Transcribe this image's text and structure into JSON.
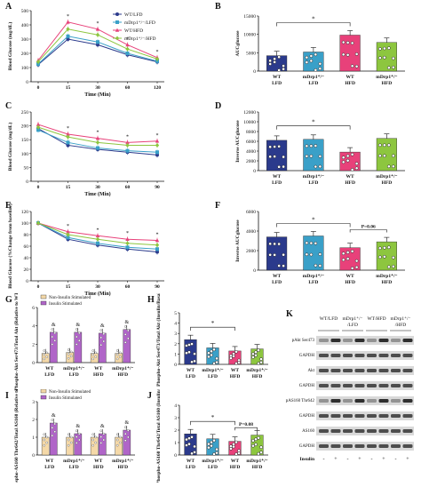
{
  "colors": {
    "wt_lfd": "#2b3a8c",
    "mdrp1_lfd": "#3aa0c8",
    "wt_hfd": "#e8417a",
    "mdrp1_hfd": "#8dc63f",
    "non_insulin": "#f5d9a8",
    "insulin": "#b065c8"
  },
  "chart_data": [
    {
      "panel": "A",
      "type": "line",
      "ylabel": "Blood Glucose (mg/dL)",
      "xlabel": "Time (Min)",
      "x": [
        0,
        15,
        30,
        60,
        120
      ],
      "xticks": [
        "0",
        "15",
        "30",
        "60",
        "120"
      ],
      "ylim": [
        0,
        500
      ],
      "yticks": [
        "0",
        "100",
        "200",
        "300",
        "400",
        "500"
      ],
      "series": [
        {
          "name": "WT/LFD",
          "values": [
            120,
            300,
            260,
            190,
            140
          ]
        },
        {
          "name": "mDrp1+/-/LFD",
          "values": [
            125,
            320,
            280,
            200,
            145
          ]
        },
        {
          "name": "WT/HFD",
          "values": [
            150,
            420,
            370,
            260,
            170
          ]
        },
        {
          "name": "mDrp1+/-/HFD",
          "values": [
            140,
            370,
            330,
            230,
            160
          ]
        }
      ],
      "legend": [
        "WT/LFD",
        "mDrp1⁺/⁻/LFD",
        "WT/HFD",
        "mDrp1⁺/⁻/HFD"
      ]
    },
    {
      "panel": "B",
      "type": "bar",
      "ylabel": "AUCglucose",
      "categories": [
        [
          "WT",
          "LFD"
        ],
        [
          "mDrp1⁺/⁻",
          "LFD"
        ],
        [
          "WT",
          "HFD"
        ],
        [
          "mDrp1⁺/⁻",
          "HFD"
        ]
      ],
      "values": [
        4200,
        5200,
        9800,
        7800
      ],
      "ylim": [
        0,
        15000
      ],
      "yticks": [
        "0",
        "5000",
        "10000",
        "15000"
      ],
      "sig": "*"
    },
    {
      "panel": "C",
      "type": "line",
      "ylabel": "Blood Glucose (mg/dL)",
      "xlabel": "Time (Min)",
      "x": [
        0,
        15,
        30,
        60,
        90
      ],
      "xticks": [
        "0",
        "15",
        "30",
        "60",
        "90"
      ],
      "ylim": [
        0,
        250
      ],
      "yticks": [
        "0",
        "50",
        "100",
        "150",
        "200",
        "250"
      ],
      "series": [
        {
          "name": "WT/LFD",
          "values": [
            190,
            130,
            115,
            105,
            95
          ]
        },
        {
          "name": "mDrp1+/-/LFD",
          "values": [
            185,
            140,
            120,
            110,
            105
          ]
        },
        {
          "name": "WT/HFD",
          "values": [
            205,
            170,
            155,
            140,
            145
          ]
        },
        {
          "name": "mDrp1+/-/HFD",
          "values": [
            195,
            160,
            140,
            130,
            130
          ]
        }
      ]
    },
    {
      "panel": "D",
      "type": "bar",
      "ylabel": "Inverse AUCglucose",
      "categories": [
        [
          "WT",
          "LFD"
        ],
        [
          "mDrp1⁺/⁻",
          "LFD"
        ],
        [
          "WT",
          "HFD"
        ],
        [
          "mDrp1⁺/⁻",
          "HFD"
        ]
      ],
      "values": [
        6200,
        6400,
        3800,
        6600
      ],
      "ylim": [
        0,
        12000
      ],
      "yticks": [
        "0",
        "2000",
        "4000",
        "6000",
        "8000",
        "10000",
        "12000"
      ],
      "sig": "*"
    },
    {
      "panel": "E",
      "type": "line",
      "ylabel": "Blood Glucose (%Change from baseline)",
      "xlabel": "Time (Min)",
      "x": [
        0,
        15,
        30,
        60,
        90
      ],
      "xticks": [
        "0",
        "15",
        "30",
        "60",
        "90"
      ],
      "ylim": [
        0,
        120
      ],
      "yticks": [
        "0",
        "20",
        "40",
        "60",
        "80",
        "100",
        "120"
      ],
      "series": [
        {
          "name": "WT/LFD",
          "values": [
            100,
            72,
            62,
            55,
            50
          ]
        },
        {
          "name": "mDrp1+/-/LFD",
          "values": [
            100,
            75,
            65,
            58,
            55
          ]
        },
        {
          "name": "WT/HFD",
          "values": [
            100,
            85,
            78,
            72,
            70
          ]
        },
        {
          "name": "mDrp1+/-/HFD",
          "values": [
            100,
            80,
            72,
            65,
            62
          ]
        }
      ]
    },
    {
      "panel": "F",
      "type": "bar",
      "ylabel": "Inverse AUCglucose",
      "categories": [
        [
          "WT",
          "LFD"
        ],
        [
          "mDrp1⁺/⁻",
          "LFD"
        ],
        [
          "WT",
          "HFD"
        ],
        [
          "mDrp1⁺/⁻",
          "HFD"
        ]
      ],
      "values": [
        3400,
        3500,
        2300,
        2900
      ],
      "ylim": [
        0,
        6000
      ],
      "yticks": [
        "0",
        "2000",
        "4000",
        "6000"
      ],
      "sig": "*",
      "annotation": "P=0.06"
    },
    {
      "panel": "G",
      "type": "bar",
      "ylabel": "Phospho-Akt Ser473/Total Akt (Relative to WT/LFD)",
      "categories": [
        [
          "WT",
          "LFD"
        ],
        [
          "mDrp1⁺/⁻",
          "LFD"
        ],
        [
          "WT",
          "HFD"
        ],
        [
          "mDrp1⁺/⁻",
          "HFD"
        ]
      ],
      "series": [
        {
          "name": "Non-Insulin Stimulated",
          "values": [
            1.0,
            1.1,
            1.0,
            1.0
          ]
        },
        {
          "name": "Insulin Stimulated",
          "values": [
            3.3,
            3.3,
            3.2,
            3.6
          ]
        }
      ],
      "ylim": [
        0,
        6
      ],
      "yticks": [
        "0",
        "2",
        "4",
        "6"
      ],
      "legend": [
        "Non-Insulin Stimulated",
        "Insulin Stimulated"
      ],
      "marks": [
        "&",
        "&",
        "&",
        "&"
      ]
    },
    {
      "panel": "H",
      "type": "bar",
      "ylabel": "Phospho-Akt Ser473/Total Akt (Insulin/Basal)",
      "categories": [
        [
          "WT",
          "LFD"
        ],
        [
          "mDrp1⁺/⁻",
          "LFD"
        ],
        [
          "WT",
          "HFD"
        ],
        [
          "mDrp1⁺/⁻",
          "HFD"
        ]
      ],
      "values": [
        2.4,
        1.6,
        1.3,
        1.5
      ],
      "ylim": [
        0,
        5
      ],
      "yticks": [
        "0",
        "1",
        "2",
        "3",
        "4",
        "5"
      ],
      "sig": "*"
    },
    {
      "panel": "I",
      "type": "bar",
      "ylabel": "Phospho-AS160 Thr642/Total AS160 (Relative to WT/LFD)",
      "categories": [
        [
          "WT",
          "LFD"
        ],
        [
          "mDrp1⁺/⁻",
          "LFD"
        ],
        [
          "WT",
          "HFD"
        ],
        [
          "mDrp1⁺/⁻",
          "HFD"
        ]
      ],
      "series": [
        {
          "name": "Non-Insulin Stimulated",
          "values": [
            1.0,
            1.0,
            1.0,
            1.0
          ]
        },
        {
          "name": "Insulin Stimulated",
          "values": [
            1.8,
            1.2,
            1.2,
            1.4
          ]
        }
      ],
      "ylim": [
        0,
        3
      ],
      "yticks": [
        "0",
        "1",
        "2",
        "3"
      ],
      "legend": [
        "Non-Insulin Stimulated",
        "Insulin Stimulated"
      ],
      "marks": [
        "&",
        "&",
        "&",
        "&"
      ]
    },
    {
      "panel": "J",
      "type": "bar",
      "ylabel": "Phospho-AS160 Thr642/Total AS160 (Insulin/Basal)",
      "categories": [
        [
          "WT",
          "LFD"
        ],
        [
          "mDrp1⁺/⁻",
          "LFD"
        ],
        [
          "WT",
          "HFD"
        ],
        [
          "mDrp1⁺/⁻",
          "HFD"
        ]
      ],
      "values": [
        1.7,
        1.3,
        1.1,
        1.6
      ],
      "ylim": [
        0,
        4
      ],
      "yticks": [
        "0",
        "1",
        "2",
        "3",
        "4"
      ],
      "sig": "*",
      "annotation": "P=0.08"
    }
  ],
  "blot": {
    "panel": "K",
    "groups": [
      "WT/LFD",
      "mDrp1⁺/⁻\n/LFD",
      "WT/HFD",
      "mDrp1⁺/⁻\n/HFD"
    ],
    "rows": [
      "pAkt Ser473",
      "GAPDH",
      "Akt",
      "GAPDH",
      "pAS160 Thr642",
      "GAPDH",
      "AS160",
      "GAPDH"
    ],
    "insulin_label": "Insulin",
    "insulin_pattern": [
      "-",
      "+",
      "-",
      "+",
      "-",
      "+",
      "-",
      "+"
    ]
  },
  "panel_letters": [
    "A",
    "B",
    "C",
    "D",
    "E",
    "F",
    "G",
    "H",
    "I",
    "J",
    "K"
  ]
}
